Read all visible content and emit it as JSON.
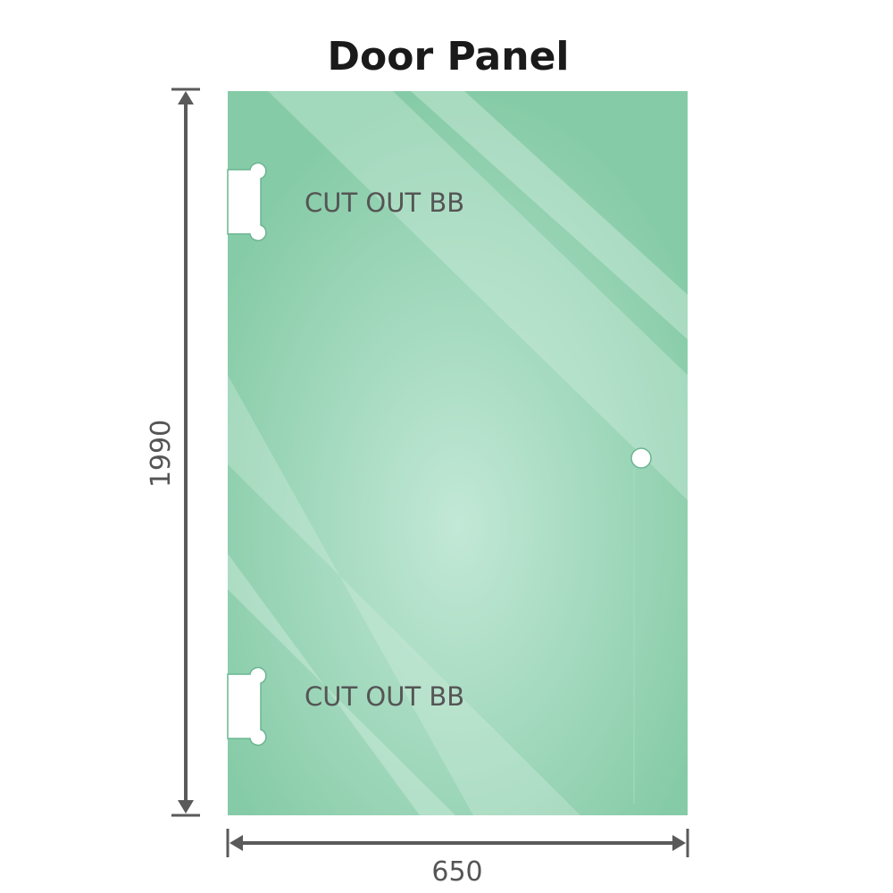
{
  "title": "Door Panel",
  "panel": {
    "cutout_top_label": "CUT OUT BB",
    "cutout_bottom_label": "CUT OUT BB",
    "glass_color": "#86cba7",
    "highlight_color": "#c2e8d6"
  },
  "dimensions": {
    "height": "1990",
    "width": "650",
    "line_color": "#5a5a5a"
  }
}
